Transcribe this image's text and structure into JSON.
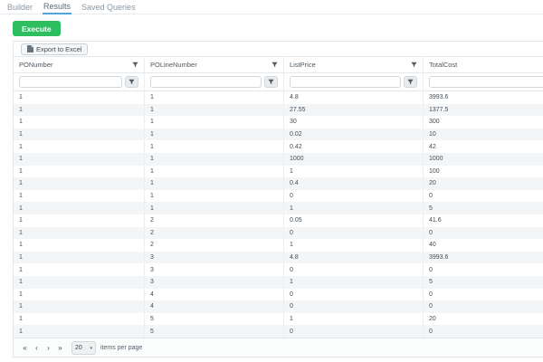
{
  "tabs": {
    "items": [
      {
        "label": "Builder",
        "active": false
      },
      {
        "label": "Results",
        "active": true
      },
      {
        "label": "Saved Queries",
        "active": false
      }
    ]
  },
  "toolbar": {
    "execute_label": "Execute",
    "export_label": "Export to Excel"
  },
  "grid": {
    "columns": [
      {
        "label": "PONumber"
      },
      {
        "label": "POLineNumber"
      },
      {
        "label": "ListPrice"
      },
      {
        "label": "TotalCost"
      }
    ],
    "filters": {
      "values": [
        "",
        "",
        "",
        ""
      ]
    },
    "rows": [
      [
        "1",
        "1",
        "4.8",
        "3993.6"
      ],
      [
        "1",
        "1",
        "27.55",
        "1377.5"
      ],
      [
        "1",
        "1",
        "30",
        "300"
      ],
      [
        "1",
        "1",
        "0.02",
        "10"
      ],
      [
        "1",
        "1",
        "0.42",
        "42"
      ],
      [
        "1",
        "1",
        "1000",
        "1000"
      ],
      [
        "1",
        "1",
        "1",
        "100"
      ],
      [
        "1",
        "1",
        "0.4",
        "20"
      ],
      [
        "1",
        "1",
        "0",
        "0"
      ],
      [
        "1",
        "1",
        "1",
        "5"
      ],
      [
        "1",
        "2",
        "0.05",
        "41.6"
      ],
      [
        "1",
        "2",
        "0",
        "0"
      ],
      [
        "1",
        "2",
        "1",
        "40"
      ],
      [
        "1",
        "3",
        "4.8",
        "3993.6"
      ],
      [
        "1",
        "3",
        "0",
        "0"
      ],
      [
        "1",
        "3",
        "1",
        "5"
      ],
      [
        "1",
        "4",
        "0",
        "0"
      ],
      [
        "1",
        "4",
        "0",
        "0"
      ],
      [
        "1",
        "5",
        "1",
        "20"
      ],
      [
        "1",
        "5",
        "0",
        "0"
      ]
    ]
  },
  "pager": {
    "buttons": [
      {
        "name": "first",
        "glyph": "«"
      },
      {
        "name": "previous",
        "glyph": "‹"
      },
      {
        "name": "next",
        "glyph": "›"
      },
      {
        "name": "last",
        "glyph": "»"
      }
    ],
    "page_size": "20",
    "caret": "▾",
    "items_per_page_label": "items per page"
  },
  "colors": {
    "execute_green": "#2dbe60",
    "tab_active_underline": "#53a4da",
    "row_stripe": "#f4f5f6",
    "grid_border": "#e2e6e9"
  }
}
